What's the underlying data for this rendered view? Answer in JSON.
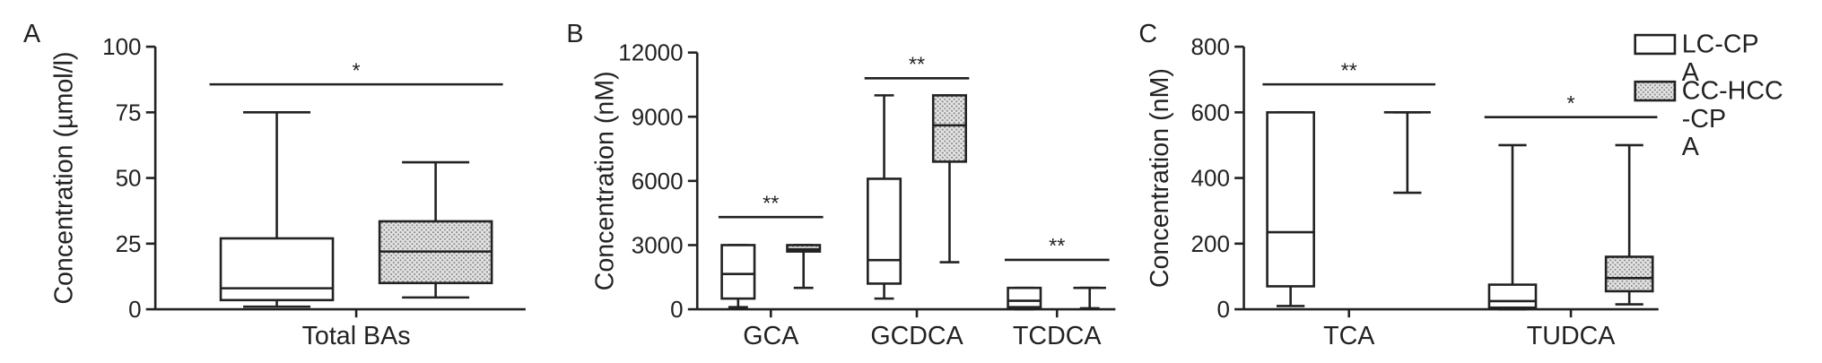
{
  "chart_data": [
    {
      "type": "box",
      "label": "A",
      "ylabel": "Concentration (µmol/l)",
      "categories": [
        "Total BAs"
      ],
      "ylim": [
        0,
        100
      ],
      "yticks": [
        0,
        25,
        50,
        75,
        100
      ],
      "significance": [
        "*"
      ],
      "series": [
        {
          "color": "#ffffff",
          "values": [
            [
              1,
              3.5,
              8,
              27,
              75
            ]
          ]
        },
        {
          "color": "#d9d9d9",
          "values": [
            [
              4.5,
              10,
              22,
              33.5,
              56
            ]
          ]
        }
      ]
    },
    {
      "type": "box",
      "label": "B",
      "ylabel": "Concentration (nM)",
      "categories": [
        "GCA",
        "GCDCA",
        "TCDCA"
      ],
      "ylim": [
        0,
        12000
      ],
      "yticks": [
        0,
        3000,
        6000,
        9000,
        12000
      ],
      "significance": [
        "**",
        "**",
        "**"
      ],
      "series": [
        {
          "color": "#ffffff",
          "values": [
            [
              100,
              500,
              1650,
              3000,
              3000
            ],
            [
              500,
              1200,
              2300,
              6100,
              10000
            ],
            [
              0,
              100,
              400,
              1000,
              1000
            ]
          ]
        },
        {
          "color": "#d9d9d9",
          "values": [
            [
              1000,
              2700,
              2800,
              3000,
              3000
            ],
            [
              2200,
              6900,
              8600,
              10000,
              10000
            ],
            [
              50,
              1000,
              1000,
              1000,
              1000
            ]
          ]
        }
      ]
    },
    {
      "type": "box",
      "label": "C",
      "ylabel": "Concentration (nM)",
      "categories": [
        "TCA",
        "TUDCA"
      ],
      "ylim": [
        0,
        800
      ],
      "yticks": [
        0,
        200,
        400,
        600,
        800
      ],
      "significance": [
        "**",
        "*"
      ],
      "series": [
        {
          "name": "LC-CP A",
          "color": "#ffffff",
          "values": [
            [
              10,
              70,
              235,
              600,
              600
            ],
            [
              0,
              5,
              25,
              75,
              500
            ]
          ]
        },
        {
          "name": "CC-HCC -CP A",
          "color": "#d9d9d9",
          "values": [
            [
              355,
              600,
              600,
              600,
              600
            ],
            [
              15,
              55,
              95,
              160,
              500
            ]
          ]
        }
      ]
    }
  ]
}
